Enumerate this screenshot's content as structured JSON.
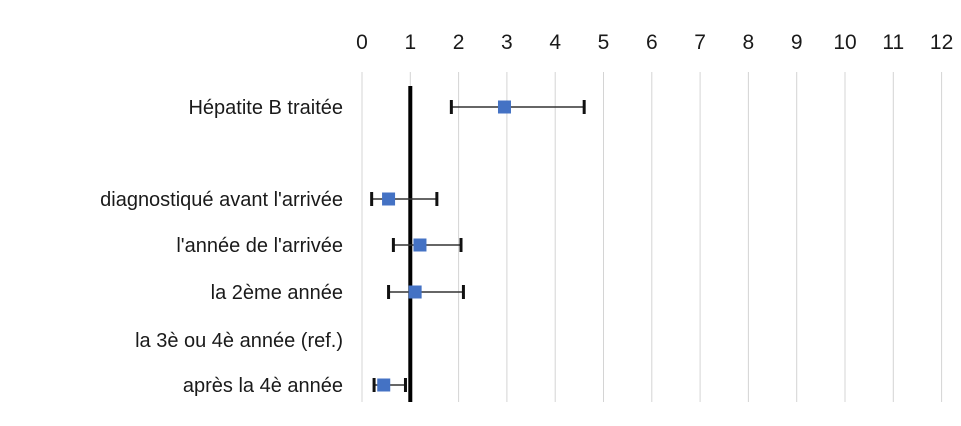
{
  "chart_data": {
    "type": "scatter",
    "subtype": "forest-plot",
    "title": "",
    "xlabel": "",
    "ylabel": "",
    "xlim": [
      0,
      12
    ],
    "xticks": [
      0,
      1,
      2,
      3,
      4,
      5,
      6,
      7,
      8,
      9,
      10,
      11,
      12
    ],
    "x_axis_position": "top",
    "grid": "vertical",
    "reference_line": 1,
    "marker_color": "#4472C4",
    "categories": [
      "Hépatite B traitée",
      "",
      "diagnostiqué avant l'arrivée",
      "l'année de l'arrivée",
      "la 2ème année",
      "la 3è ou 4è année (ref.)",
      "après la 4è année"
    ],
    "points": [
      {
        "label": "Hépatite B traitée",
        "estimate": 2.95,
        "lower": 1.85,
        "upper": 4.6
      },
      {
        "label": "diagnostiqué avant l'arrivée",
        "estimate": 0.55,
        "lower": 0.2,
        "upper": 1.55
      },
      {
        "label": "l'année de l'arrivée",
        "estimate": 1.2,
        "lower": 0.65,
        "upper": 2.05
      },
      {
        "label": "la 2ème année",
        "estimate": 1.1,
        "lower": 0.55,
        "upper": 2.1
      },
      {
        "label": "la 3è ou 4è année (ref.)",
        "estimate": null,
        "lower": null,
        "upper": null
      },
      {
        "label": "après la 4è année",
        "estimate": 0.45,
        "lower": 0.25,
        "upper": 0.9
      }
    ]
  }
}
